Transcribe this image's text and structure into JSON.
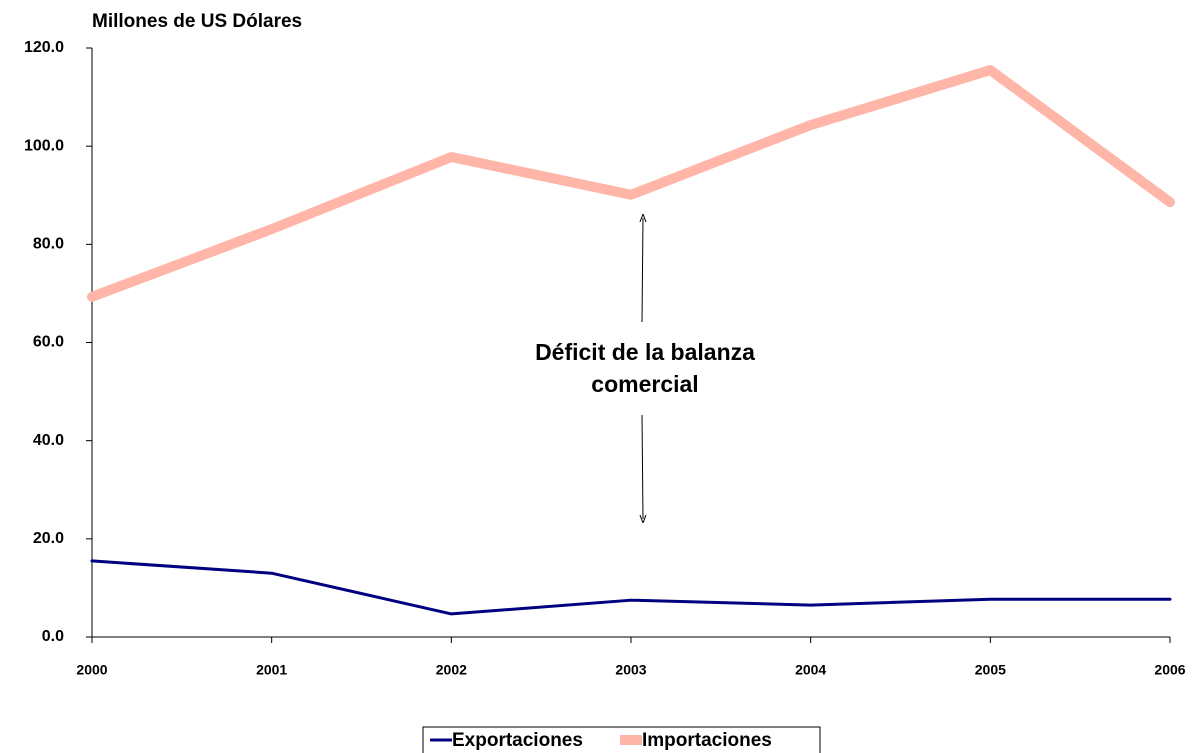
{
  "chart_data": {
    "type": "line",
    "title": "Millones de US Dólares",
    "categories": [
      "2000",
      "2001",
      "2002",
      "2003",
      "2004",
      "2005",
      "2006"
    ],
    "series": [
      {
        "name": "Exportaciones",
        "color": "#000080",
        "width": 3,
        "values": [
          15.5,
          13.0,
          4.7,
          7.5,
          6.5,
          7.7,
          7.7
        ]
      },
      {
        "name": "Importaciones",
        "color": "#ffb6a8",
        "width": 10,
        "values": [
          69.3,
          83.1,
          97.8,
          90.1,
          104.3,
          115.5,
          88.6
        ]
      }
    ],
    "ylim": [
      0,
      120
    ],
    "yticks": [
      {
        "value": 0,
        "label": "0.0"
      },
      {
        "value": 20,
        "label": "20.0"
      },
      {
        "value": 40,
        "label": "40.0"
      },
      {
        "value": 60,
        "label": "60.0"
      },
      {
        "value": 80,
        "label": "80.0"
      },
      {
        "value": 100,
        "label": "100.0"
      },
      {
        "value": 120,
        "label": "120.0"
      }
    ],
    "annotation": [
      "Déficit de la balanza",
      "comercial"
    ],
    "grid": false,
    "legend": "bottom"
  }
}
